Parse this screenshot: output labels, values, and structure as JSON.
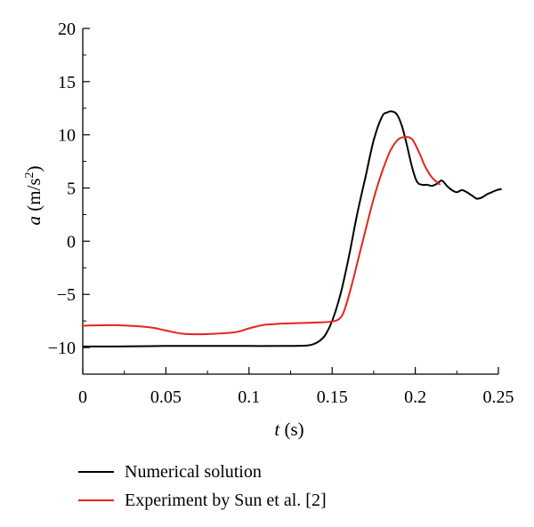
{
  "chart_data": {
    "type": "line",
    "xlabel": {
      "var": "t",
      "unit": " (s)"
    },
    "ylabel": {
      "var": "a",
      "unit_pre": " (m/s",
      "unit_sup": "2",
      "unit_post": ")"
    },
    "xlim": [
      0,
      0.25
    ],
    "ylim": [
      -12.5,
      20
    ],
    "xticks": [
      0,
      0.05,
      0.1,
      0.15,
      0.2,
      0.25
    ],
    "xtick_labels": [
      "0",
      "0.05",
      "0.1",
      "0.15",
      "0.2",
      "0.25"
    ],
    "yticks": [
      -10,
      -5,
      0,
      5,
      10,
      15,
      20
    ],
    "ytick_labels": [
      "−10",
      "−5",
      "0",
      "5",
      "10",
      "15",
      "20"
    ],
    "grid": false,
    "legend_position": "bottom",
    "series": [
      {
        "name": "Numerical solution",
        "color": "#000000",
        "x": [
          0,
          0.02,
          0.05,
          0.08,
          0.1,
          0.12,
          0.135,
          0.14,
          0.143,
          0.146,
          0.15,
          0.155,
          0.16,
          0.165,
          0.17,
          0.175,
          0.18,
          0.183,
          0.186,
          0.189,
          0.192,
          0.195,
          0.198,
          0.201,
          0.204,
          0.207,
          0.21,
          0.213,
          0.216,
          0.219,
          0.222,
          0.225,
          0.228,
          0.231,
          0.234,
          0.237,
          0.24,
          0.243,
          0.246,
          0.249,
          0.252
        ],
        "y": [
          -9.9,
          -9.9,
          -9.85,
          -9.85,
          -9.85,
          -9.85,
          -9.8,
          -9.6,
          -9.3,
          -8.8,
          -7.5,
          -5.0,
          -1.5,
          2.5,
          6.0,
          9.5,
          11.7,
          12.1,
          12.2,
          11.9,
          10.8,
          9.0,
          7.0,
          5.6,
          5.3,
          5.3,
          5.2,
          5.4,
          5.7,
          5.2,
          4.8,
          4.6,
          4.8,
          4.6,
          4.3,
          4.0,
          4.1,
          4.4,
          4.6,
          4.8,
          4.9
        ]
      },
      {
        "name": "Experiment by Sun et al. [2]",
        "color": "#e8231d",
        "x": [
          0,
          0.02,
          0.04,
          0.05,
          0.06,
          0.07,
          0.08,
          0.09,
          0.095,
          0.1,
          0.105,
          0.11,
          0.115,
          0.12,
          0.13,
          0.14,
          0.15,
          0.155,
          0.158,
          0.162,
          0.166,
          0.17,
          0.175,
          0.18,
          0.185,
          0.19,
          0.195,
          0.198,
          0.2,
          0.203,
          0.206,
          0.21,
          0.215
        ],
        "y": [
          -7.95,
          -7.9,
          -8.1,
          -8.4,
          -8.7,
          -8.75,
          -8.7,
          -8.6,
          -8.45,
          -8.2,
          -8.0,
          -7.85,
          -7.8,
          -7.75,
          -7.7,
          -7.65,
          -7.55,
          -7.2,
          -6.2,
          -4.0,
          -1.5,
          1.0,
          4.0,
          6.5,
          8.5,
          9.6,
          9.8,
          9.6,
          9.1,
          8.1,
          7.0,
          6.0,
          5.3
        ]
      }
    ]
  }
}
